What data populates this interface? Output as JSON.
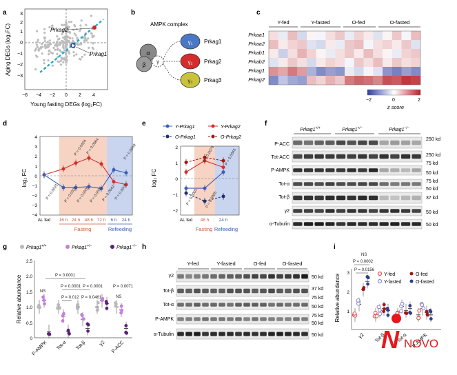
{
  "panels": {
    "a": "a",
    "b": "b",
    "c": "c",
    "d": "d",
    "e": "e",
    "f": "f",
    "g": "g",
    "h": "h",
    "i": "i"
  },
  "a": {
    "xlabel": "Young fasting DEGs (log₂FC)",
    "ylabel": "Aging DEGs (log₂FC)",
    "xticks": [
      "−6",
      "−4",
      "−2",
      "0",
      "2",
      "4"
    ],
    "yticks": [
      "3",
      "2",
      "1",
      "0",
      "−1",
      "−2",
      "−3"
    ],
    "label_prkag2": "Prkag2",
    "label_prkag1": "Prkag1"
  },
  "b": {
    "title": "AMPK complex",
    "alpha": "α",
    "beta": "β",
    "gamma": "γ",
    "g1": "γ₁",
    "g2": "γ₂",
    "g3": "γ₃",
    "labels": [
      "Prkag1",
      "Prkag2",
      "Prkag3"
    ]
  },
  "c": {
    "groups": [
      "Y-fed",
      "Y-fasted",
      "O-fed",
      "O-fasted"
    ],
    "genes": [
      "Prkaa1",
      "Prkaa2",
      "Prkab1",
      "Prkab2",
      "Prkag1",
      "Prkag2"
    ],
    "scale_ticks": [
      "−2",
      "0",
      "2"
    ],
    "scale_label": "z score"
  },
  "chart_data": [
    {
      "type": "line",
      "panel": "d",
      "ylabel": "log₂ FC",
      "x": [
        "AL fed",
        "16 h",
        "24 h",
        "48 h",
        "72 h",
        "6 h",
        "24 h"
      ],
      "yticks": [
        "4",
        "3",
        "2",
        "1",
        "0",
        "−1",
        "−2",
        "−3",
        "−4"
      ],
      "ylim": [
        -4,
        4
      ],
      "series": [
        {
          "name": "Prkag2",
          "color": "#d62c2c",
          "values": [
            0.1,
            0.7,
            1.3,
            1.8,
            1.2,
            -0.6,
            -0.9
          ]
        },
        {
          "name": "Prkag1",
          "color": "#3a5fb0",
          "values": [
            0.1,
            -1.2,
            -1.2,
            -1.1,
            -1.3,
            0.6,
            0.3
          ]
        }
      ],
      "pvalues_top": [
        "P = 0.0424",
        "P = 0.0064",
        "P = 0.0059"
      ],
      "pvalues_bottom": [
        "P = 0.0021",
        "P = 0.0025",
        "P = 0.0009",
        "P = 0.0035",
        "P = 0.0042",
        "P = 0.0002"
      ],
      "phase_fasting": "Fasting",
      "phase_refeeding": "Refeeding"
    },
    {
      "type": "line",
      "panel": "e",
      "ylabel": "log₂ FC",
      "x": [
        "AL fed",
        "48 h",
        "24 h"
      ],
      "yticks": [
        "2",
        "1",
        "0",
        "−1",
        "−2"
      ],
      "ylim": [
        -2,
        2
      ],
      "series": [
        {
          "name": "Y-Prkag1",
          "color": "#3a5fb0",
          "values": [
            -0.6,
            -0.6,
            0.4
          ]
        },
        {
          "name": "Y-Prkag2",
          "color": "#d62c2c",
          "values": [
            0.4,
            1.1,
            0.7
          ]
        },
        {
          "name": "O-Prkag1",
          "color": "#1e2f6e",
          "values": [
            -0.9,
            -1.4,
            -1.1
          ]
        },
        {
          "name": "O-Prkag2",
          "color": "#a11616",
          "values": [
            1.0,
            1.3,
            1.1
          ]
        }
      ],
      "legend": [
        "Y-Prkag1",
        "Y-Prkag2",
        "O-Prkag1",
        "O-Prkag2"
      ],
      "pvalues": [
        "P = 0.0078",
        "P = 0.0043",
        "P = 0.0001",
        "P = 0.0005"
      ],
      "phase_fasting": "Fasting",
      "phase_refeeding": "Refeeding"
    },
    {
      "type": "scatter",
      "panel": "g",
      "ylabel": "Relative abundance",
      "categories": [
        "P-AMPK",
        "Tot-α",
        "Tot-β",
        "γ2",
        "P-ACC"
      ],
      "yticks": [
        "2.5",
        "2.0",
        "1.5",
        "1.0",
        "0.5",
        "0"
      ],
      "ylim": [
        0,
        2.5
      ],
      "series": [
        {
          "name": "Prkag1+/+",
          "color": "#b9b9b9",
          "values": [
            1.0,
            1.0,
            1.0,
            1.0,
            1.0
          ]
        },
        {
          "name": "Prkag1+/-",
          "color": "#c77de0",
          "values": [
            1.2,
            0.7,
            0.6,
            1.2,
            0.9
          ]
        },
        {
          "name": "Prkag1-/-",
          "color": "#5e1f7a",
          "values": [
            0.2,
            0.2,
            0.3,
            1.1,
            0.3
          ]
        }
      ],
      "legend": [
        "Prkag1",
        "Prkag1",
        "Prkag1"
      ],
      "legend_sup": [
        "+/+",
        "+/−",
        "−/−"
      ],
      "pvalues": [
        "P = 0.0001",
        "P = 0.0001",
        "P = 0.0001",
        "P = 0.0071",
        "P = 0.012",
        "P = 0.0461",
        "NS",
        "NS"
      ]
    },
    {
      "type": "scatter",
      "panel": "i",
      "ylabel": "Relative abundance",
      "categories": [
        "γ2",
        "Tot-β",
        "Tot-α",
        "P-AMPK"
      ],
      "yticks": [
        "3",
        "2",
        "1"
      ],
      "ylim": [
        0.3,
        3.2
      ],
      "series": [
        {
          "name": "Y-fed",
          "color": "#e05050",
          "values": [
            1.0,
            1.0,
            1.0,
            1.0
          ]
        },
        {
          "name": "Y-fasted",
          "color": "#8c8cd0",
          "values": [
            1.5,
            1.2,
            1.4,
            1.3
          ]
        },
        {
          "name": "O-fed",
          "color": "#a11616",
          "values": [
            2.2,
            1.3,
            1.2,
            1.1
          ]
        },
        {
          "name": "O-fasted",
          "color": "#2c3f8f",
          "values": [
            2.6,
            1.2,
            1.3,
            1.0
          ]
        }
      ],
      "legend": [
        "Y-fed",
        "O-fed",
        "Y-fasted",
        "O-fasted"
      ],
      "pvalues": [
        "P = 0.0002",
        "P = 0.0156",
        "NS"
      ]
    }
  ],
  "f": {
    "genotypes": [
      "Prkag1",
      "Prkag1",
      "Prkag1"
    ],
    "genotypes_sup": [
      "+/+",
      "+/−",
      "−/−"
    ],
    "rows": [
      "P-ACC",
      "Tot-ACC",
      "P-AMPK",
      "Tot-α",
      "Tot-β",
      "γ2",
      "α-Tubulin"
    ],
    "markers": [
      "250 kd",
      "250 kd",
      "75 kd",
      "50 kd",
      "75 kd",
      "50 kd",
      "37 kd",
      "50 kd",
      "50 kd"
    ]
  },
  "h": {
    "groups": [
      "Y-fed",
      "Y-fasted",
      "O-fed",
      "O-fasted"
    ],
    "rows": [
      "γ2",
      "Tot-β",
      "Tot-α",
      "P-AMPK",
      "α-Tubulin"
    ],
    "markers": [
      "50 kd",
      "37 kd",
      "75 kd",
      "50 kd",
      "75 kd",
      "50 kd",
      "50 kd"
    ]
  },
  "watermark": "NOVO"
}
